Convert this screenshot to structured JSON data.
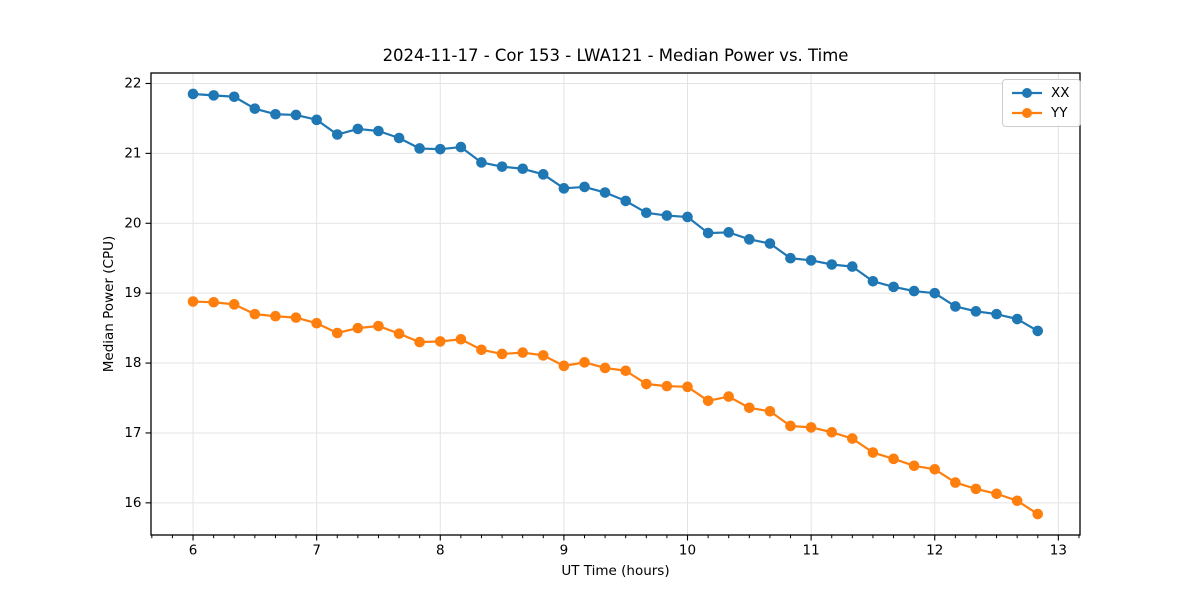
{
  "figure": {
    "kind": "matplotlib-style line chart"
  },
  "chart_data": {
    "type": "line",
    "title": "2024-11-17 - Cor 153 - LWA121 - Median Power vs. Time",
    "xlabel": "UT Time (hours)",
    "ylabel": "Median Power (CPU)",
    "xlim": [
      5.66,
      13.175
    ],
    "ylim": [
      15.54,
      22.15
    ],
    "x_ticks": [
      6,
      7,
      8,
      9,
      10,
      11,
      12,
      13
    ],
    "y_ticks": [
      16,
      17,
      18,
      19,
      20,
      21,
      22
    ],
    "x_minor_step": 0.1666667,
    "grid": true,
    "grid_color": "#e3e3e3",
    "legend_position": "upper right",
    "x": [
      6.0,
      6.167,
      6.333,
      6.5,
      6.667,
      6.833,
      7.0,
      7.167,
      7.333,
      7.5,
      7.667,
      7.833,
      8.0,
      8.167,
      8.333,
      8.5,
      8.667,
      8.833,
      9.0,
      9.167,
      9.333,
      9.5,
      9.667,
      9.833,
      10.0,
      10.167,
      10.333,
      10.5,
      10.667,
      10.833,
      11.0,
      11.167,
      11.333,
      11.5,
      11.667,
      11.833,
      12.0,
      12.167,
      12.333,
      12.5,
      12.667,
      12.833
    ],
    "series": [
      {
        "name": "XX",
        "color": "#1f77b4",
        "values": [
          21.85,
          21.83,
          21.81,
          21.64,
          21.56,
          21.55,
          21.48,
          21.27,
          21.35,
          21.32,
          21.22,
          21.07,
          21.06,
          21.09,
          20.87,
          20.81,
          20.78,
          20.7,
          20.5,
          20.52,
          20.44,
          20.32,
          20.15,
          20.11,
          20.09,
          19.86,
          19.87,
          19.77,
          19.71,
          19.5,
          19.47,
          19.41,
          19.38,
          19.17,
          19.09,
          19.03,
          19.0,
          18.81,
          18.74,
          18.7,
          18.63,
          18.46
        ]
      },
      {
        "name": "YY",
        "color": "#ff7f0e",
        "values": [
          18.88,
          18.87,
          18.84,
          18.7,
          18.67,
          18.65,
          18.57,
          18.43,
          18.5,
          18.53,
          18.42,
          18.3,
          18.31,
          18.34,
          18.19,
          18.13,
          18.15,
          18.11,
          17.96,
          18.01,
          17.93,
          17.89,
          17.7,
          17.67,
          17.66,
          17.46,
          17.52,
          17.36,
          17.31,
          17.1,
          17.08,
          17.01,
          16.92,
          16.72,
          16.63,
          16.53,
          16.48,
          16.29,
          16.2,
          16.13,
          16.03,
          15.84
        ]
      }
    ]
  }
}
